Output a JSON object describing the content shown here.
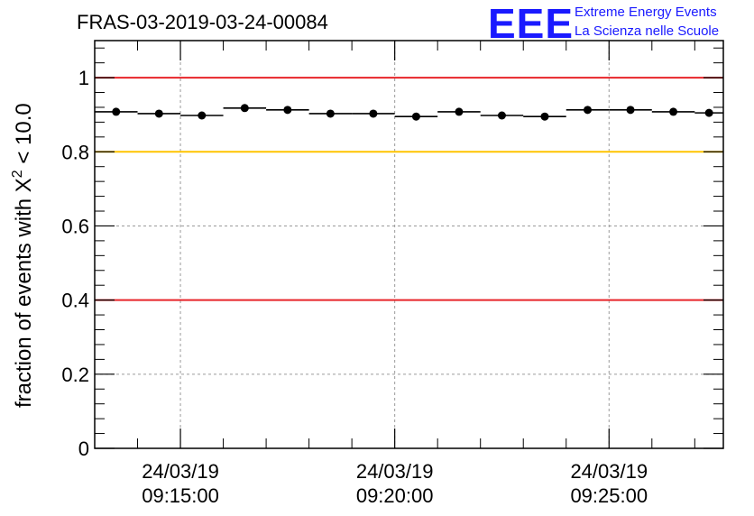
{
  "title": "FRAS-03-2019-03-24-00084",
  "logo": {
    "letters": "EEE",
    "line1": "Extreme Energy Events",
    "line2": "La Scienza nelle Scuole"
  },
  "chart_data": {
    "type": "scatter",
    "title": "FRAS-03-2019-03-24-00084",
    "ylabel": {
      "prefix": "fraction of events with ",
      "symbol": "X",
      "superscript": "2",
      "suffix": " < 10.0"
    },
    "ylim": [
      0,
      1.1
    ],
    "xlim": [
      "09:13:00",
      "09:27:40"
    ],
    "yticks": [
      {
        "value": 0,
        "label": "0"
      },
      {
        "value": 0.2,
        "label": "0.2"
      },
      {
        "value": 0.4,
        "label": "0.4"
      },
      {
        "value": 0.6,
        "label": "0.6"
      },
      {
        "value": 0.8,
        "label": "0.8"
      },
      {
        "value": 1,
        "label": "1"
      }
    ],
    "xticks": [
      {
        "time": "09:15:00",
        "date": "24/03/19",
        "label": "09:15:00"
      },
      {
        "time": "09:20:00",
        "date": "24/03/19",
        "label": "09:20:00"
      },
      {
        "time": "09:25:00",
        "date": "24/03/19",
        "label": "09:25:00"
      }
    ],
    "grid": true,
    "reference_lines": [
      {
        "y": 1.0,
        "color": "#e8252a"
      },
      {
        "y": 0.8,
        "color": "#ffc400"
      },
      {
        "y": 0.4,
        "color": "#e8252a"
      }
    ],
    "marker_color": "#000000",
    "points": [
      {
        "x_start": "09:13:00",
        "x_end": "09:14:00",
        "y": 0.908
      },
      {
        "x_start": "09:14:00",
        "x_end": "09:15:00",
        "y": 0.903
      },
      {
        "x_start": "09:15:00",
        "x_end": "09:16:00",
        "y": 0.898
      },
      {
        "x_start": "09:16:00",
        "x_end": "09:17:00",
        "y": 0.918
      },
      {
        "x_start": "09:17:00",
        "x_end": "09:18:00",
        "y": 0.913
      },
      {
        "x_start": "09:18:00",
        "x_end": "09:19:00",
        "y": 0.903
      },
      {
        "x_start": "09:19:00",
        "x_end": "09:20:00",
        "y": 0.903
      },
      {
        "x_start": "09:20:00",
        "x_end": "09:21:00",
        "y": 0.895
      },
      {
        "x_start": "09:21:00",
        "x_end": "09:22:00",
        "y": 0.908
      },
      {
        "x_start": "09:22:00",
        "x_end": "09:23:00",
        "y": 0.898
      },
      {
        "x_start": "09:23:00",
        "x_end": "09:24:00",
        "y": 0.895
      },
      {
        "x_start": "09:24:00",
        "x_end": "09:25:00",
        "y": 0.913
      },
      {
        "x_start": "09:25:00",
        "x_end": "09:26:00",
        "y": 0.913
      },
      {
        "x_start": "09:26:00",
        "x_end": "09:27:00",
        "y": 0.908
      },
      {
        "x_start": "09:27:00",
        "x_end": "09:27:40",
        "y": 0.905
      }
    ]
  }
}
